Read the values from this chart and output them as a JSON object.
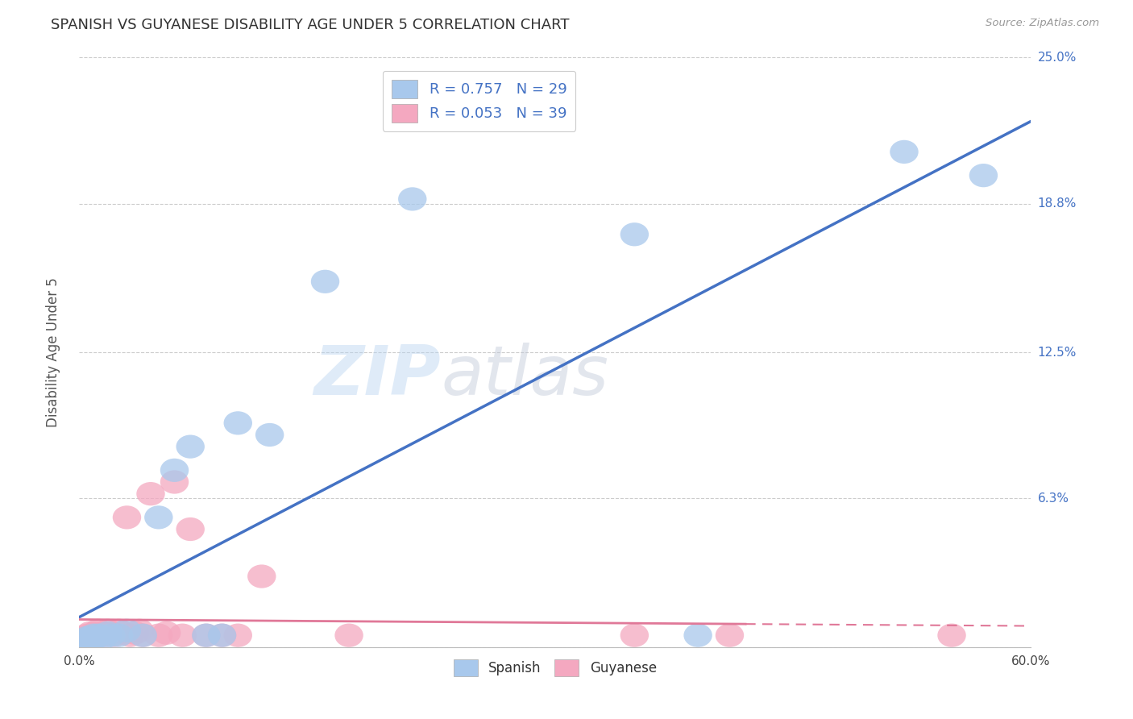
{
  "title": "SPANISH VS GUYANESE DISABILITY AGE UNDER 5 CORRELATION CHART",
  "source_text": "Source: ZipAtlas.com",
  "ylabel": "Disability Age Under 5",
  "xlim": [
    0.0,
    0.6
  ],
  "ylim": [
    0.0,
    0.25
  ],
  "yticks": [
    0.0,
    0.063,
    0.125,
    0.188,
    0.25
  ],
  "ytick_labels": [
    "",
    "6.3%",
    "12.5%",
    "18.8%",
    "25.0%"
  ],
  "xticks": [
    0.0,
    0.1,
    0.2,
    0.3,
    0.4,
    0.5,
    0.6
  ],
  "xtick_labels": [
    "0.0%",
    "",
    "",
    "",
    "",
    "",
    "60.0%"
  ],
  "spanish_color": "#A8C8EC",
  "guyanese_color": "#F4A8C0",
  "spanish_line_color": "#4472C4",
  "guyanese_line_color": "#E07898",
  "spanish_R": 0.757,
  "spanish_N": 29,
  "guyanese_R": 0.053,
  "guyanese_N": 39,
  "spanish_x": [
    0.002,
    0.003,
    0.004,
    0.005,
    0.006,
    0.007,
    0.008,
    0.009,
    0.01,
    0.012,
    0.015,
    0.018,
    0.02,
    0.025,
    0.03,
    0.04,
    0.05,
    0.06,
    0.07,
    0.08,
    0.09,
    0.1,
    0.12,
    0.155,
    0.21,
    0.35,
    0.39,
    0.52,
    0.57
  ],
  "spanish_y": [
    0.002,
    0.003,
    0.003,
    0.004,
    0.003,
    0.004,
    0.003,
    0.005,
    0.004,
    0.005,
    0.004,
    0.006,
    0.005,
    0.005,
    0.007,
    0.005,
    0.055,
    0.075,
    0.085,
    0.005,
    0.005,
    0.095,
    0.09,
    0.155,
    0.19,
    0.175,
    0.005,
    0.21,
    0.2
  ],
  "guyanese_x": [
    0.001,
    0.002,
    0.003,
    0.004,
    0.005,
    0.006,
    0.007,
    0.008,
    0.009,
    0.01,
    0.011,
    0.012,
    0.013,
    0.015,
    0.016,
    0.018,
    0.02,
    0.022,
    0.025,
    0.028,
    0.03,
    0.032,
    0.035,
    0.038,
    0.04,
    0.045,
    0.05,
    0.055,
    0.06,
    0.065,
    0.07,
    0.08,
    0.09,
    0.1,
    0.115,
    0.17,
    0.35,
    0.41,
    0.55
  ],
  "guyanese_y": [
    0.002,
    0.003,
    0.004,
    0.003,
    0.005,
    0.004,
    0.006,
    0.005,
    0.004,
    0.006,
    0.005,
    0.007,
    0.005,
    0.006,
    0.005,
    0.007,
    0.006,
    0.005,
    0.007,
    0.006,
    0.055,
    0.005,
    0.006,
    0.007,
    0.005,
    0.065,
    0.005,
    0.006,
    0.07,
    0.005,
    0.05,
    0.005,
    0.005,
    0.005,
    0.03,
    0.005,
    0.005,
    0.005,
    0.005
  ],
  "spanish_trendline_x": [
    0.0,
    0.6
  ],
  "spanish_trendline_y": [
    0.0,
    0.225
  ],
  "guyanese_trendline_x0": 0.0,
  "guyanese_trendline_x_solid_end": 0.42,
  "guyanese_trendline_x_dashed_end": 0.6,
  "guyanese_trendline_y0": 0.012,
  "guyanese_trendline_slope": 0.003
}
